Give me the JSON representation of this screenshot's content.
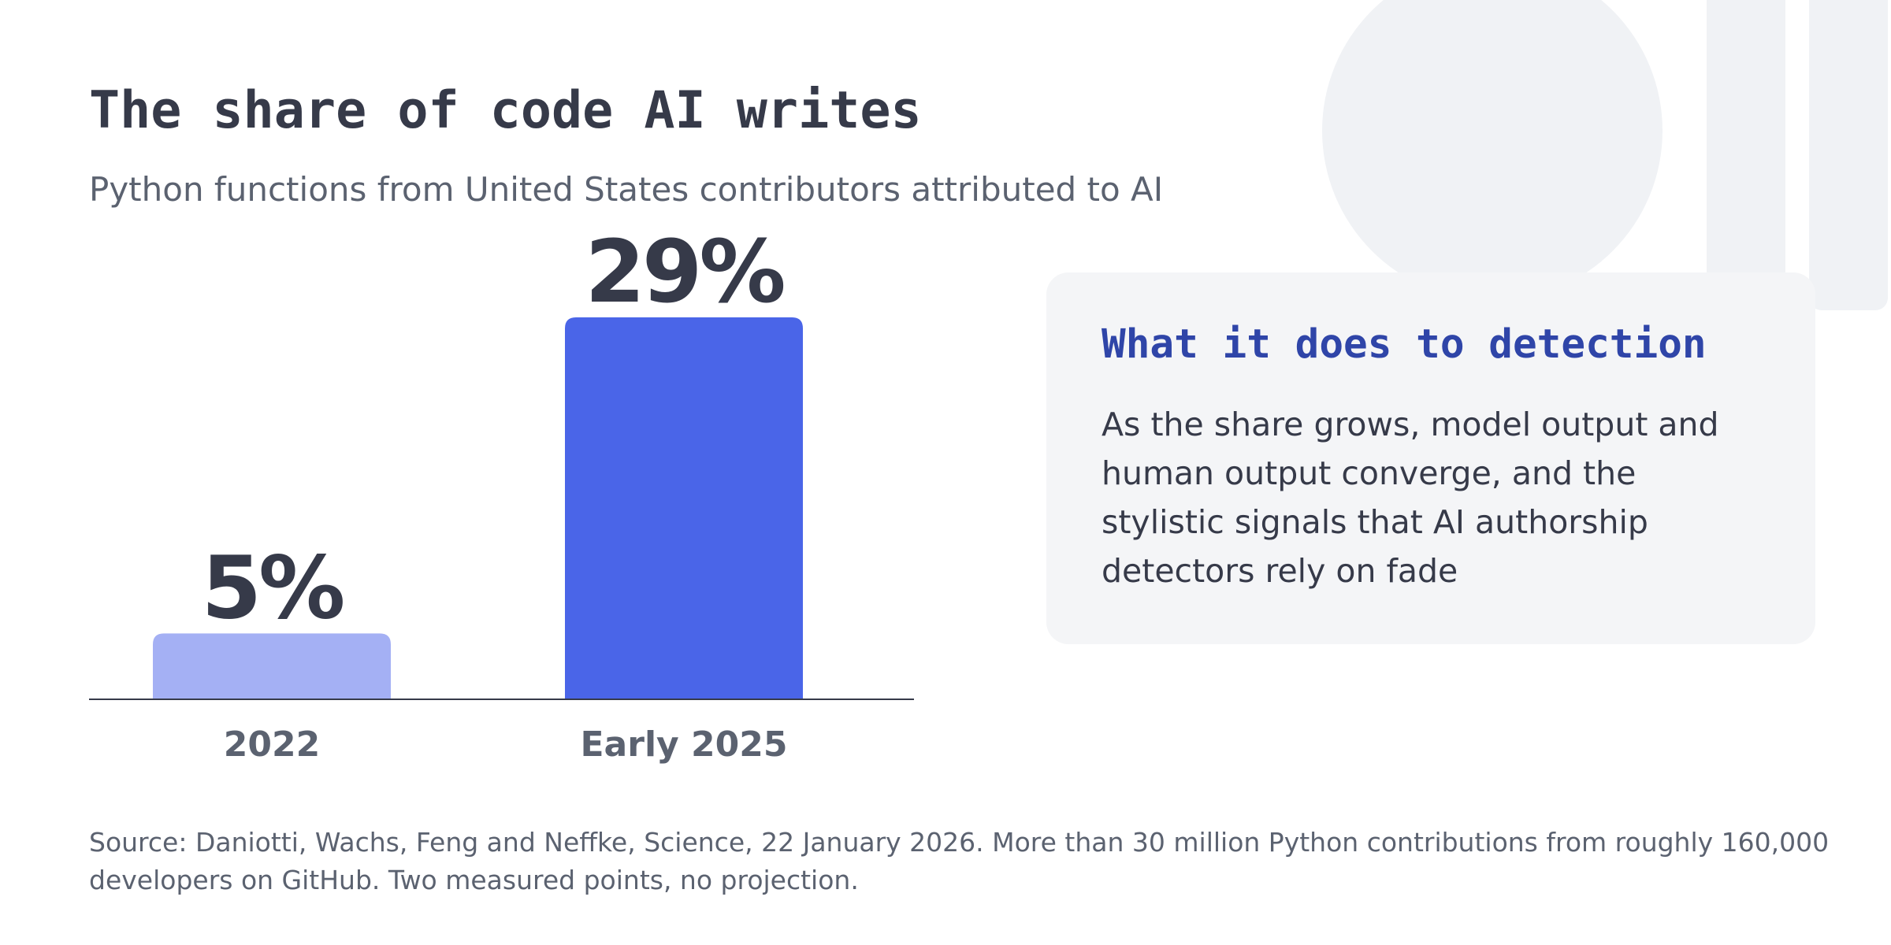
{
  "header": {
    "title": "The share of code AI writes",
    "subtitle": "Python functions from United States contributors attributed to AI"
  },
  "chart_data": {
    "type": "bar",
    "title": "The share of code AI writes",
    "subtitle": "Python functions from United States contributors attributed to AI",
    "xlabel": "",
    "ylabel": "",
    "unit": "%",
    "categories": [
      "2022",
      "Early 2025"
    ],
    "values": [
      5,
      29
    ],
    "value_labels": [
      "5%",
      "29%"
    ],
    "ylim": [
      0,
      29
    ],
    "grid": false,
    "legend": "none",
    "colors": [
      "#a4b0f4",
      "#4a65e8"
    ]
  },
  "card": {
    "title": "What it does to detection",
    "body": "As the share grows, model output and human output converge, and the stylistic signals that AI authorship detectors rely on fade"
  },
  "footer": {
    "source": "Source: Daniotti, Wachs, Feng and Neffke, Science, 22 January 2026. More than 30 million Python contributions from roughly 160,000 developers on GitHub. Two measured points, no projection."
  },
  "colors": {
    "text_dark": "#363a49",
    "text_muted": "#5b6270",
    "accent_blue": "#2f45a8",
    "card_bg": "#f4f5f7",
    "decor": "#f0f2f5"
  }
}
